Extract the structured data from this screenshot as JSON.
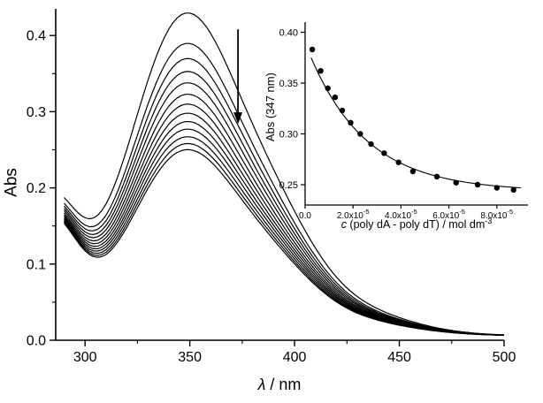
{
  "figure": {
    "background": "#ffffff",
    "ink": "#000000"
  },
  "chart_data": {
    "type": "line",
    "description": "UV-Vis absorption spectra during titration; absorbance decreases (downward arrow). Inset: binding isotherm of Abs at 347 nm vs polynucleotide concentration with fitted curve.",
    "main": {
      "xlabel": {
        "symbol": "λ",
        "text": " / nm"
      },
      "ylabel": "Abs",
      "xlim": [
        286,
        500
      ],
      "ylim": [
        0,
        0.435
      ],
      "xticks": [
        300,
        350,
        400,
        450,
        500
      ],
      "yticks": [
        0.0,
        0.1,
        0.2,
        0.3,
        0.4
      ],
      "x_minor_step": 25,
      "y_minor_step": 0.05,
      "grid": false,
      "peak_wavelength_nm": 347,
      "series_peak_abs": [
        0.425,
        0.385,
        0.365,
        0.348,
        0.333,
        0.318,
        0.305,
        0.293,
        0.282,
        0.272,
        0.262,
        0.253,
        0.245
      ],
      "band_model": {
        "peak_norm": 1.03,
        "baseline": 0.006,
        "edge": {
          "center": 282,
          "sigma": 14,
          "amp_const": 0.12,
          "amp_scale": 0.12
        },
        "main_band": {
          "center": 347,
          "sigma": 26
        },
        "shoulder": {
          "center": 391,
          "sigma": 20,
          "rel_amp": 0.22
        },
        "tail": {
          "center": 420,
          "sigma": 30,
          "rel_amp": 0.09
        }
      },
      "arrow": {
        "x_nm": 373,
        "abs_from": 0.408,
        "abs_to": 0.284,
        "direction": "down"
      }
    },
    "inset": {
      "ylabel": "Abs (347 nm)",
      "xlabel": {
        "italic": "c",
        "text": " (poly dA - poly dT) / mol dm",
        "exponent": "-3"
      },
      "xlim": [
        0,
        9.3e-05
      ],
      "ylim": [
        0.23,
        0.41
      ],
      "xticks": [
        0,
        2e-05,
        4e-05,
        6e-05,
        8e-05
      ],
      "yticks": [
        0.25,
        0.3,
        0.35,
        0.4
      ],
      "points": [
        [
          3e-06,
          0.383
        ],
        [
          6.5e-06,
          0.362
        ],
        [
          9.5e-06,
          0.345
        ],
        [
          1.25e-05,
          0.336
        ],
        [
          1.55e-05,
          0.323
        ],
        [
          1.9e-05,
          0.311
        ],
        [
          2.3e-05,
          0.3
        ],
        [
          2.75e-05,
          0.29
        ],
        [
          3.3e-05,
          0.281
        ],
        [
          3.9e-05,
          0.272
        ],
        [
          4.5e-05,
          0.263
        ],
        [
          5.5e-05,
          0.258
        ],
        [
          6.3e-05,
          0.252
        ],
        [
          7.2e-05,
          0.25
        ],
        [
          8e-05,
          0.247
        ],
        [
          8.7e-05,
          0.245
        ]
      ],
      "fit": {
        "y0": 0.2435,
        "amplitude": 0.146,
        "decay": 2.4e-05,
        "c_start": 2.5e-06,
        "c_end": 9e-05
      }
    }
  }
}
